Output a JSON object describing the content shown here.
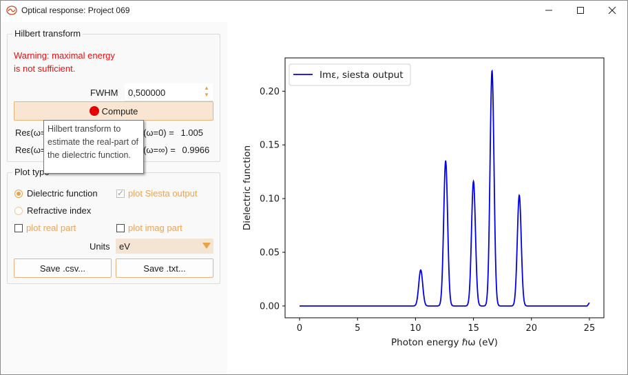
{
  "window": {
    "title": "Optical response: Project 069",
    "buttons": {
      "minimize": "—",
      "maximize": "☐",
      "close": "✕"
    }
  },
  "hilbert": {
    "group_title": "Hilbert transform",
    "warning_line1": "Warning: maximal energy",
    "warning_line2": "is not sufficient.",
    "fwhm_label": "FWHM",
    "fwhm_value": "0,500000",
    "compute_label": "Compute",
    "result1_prefix": "Reε(ω=",
    "result1_suffix": "(ω=0) =",
    "result1_value": "1.005",
    "result2_prefix": "Reε(ω=",
    "result2_suffix": "(ω=∞) =",
    "result2_value": "0.9966",
    "tooltip": "Hilbert transform to estimate the real-part of the dielectric function."
  },
  "plot_type": {
    "group_title": "Plot type",
    "radio_dielectric": "Dielectric function",
    "radio_refractive": "Refractive index",
    "check_siesta": "plot Siesta output",
    "check_real": "plot real part",
    "check_imag": "plot imag part",
    "units_label": "Units",
    "units_value": "eV",
    "save_csv": "Save .csv...",
    "save_txt": "Save .txt..."
  },
  "colors": {
    "accent": "#e8a24a",
    "warning": "#e81010",
    "series": "#0000e6"
  },
  "chart_data": {
    "type": "line",
    "title": "",
    "xlabel": "Photon energy ℏω (eV)",
    "ylabel": "Dielectric function",
    "xlim": [
      -1.25,
      26.25
    ],
    "ylim": [
      -0.011,
      0.231
    ],
    "x_ticks": [
      "0",
      "5",
      "10",
      "15",
      "20",
      "25"
    ],
    "y_ticks": [
      "0.00",
      "0.05",
      "0.10",
      "0.15",
      "0.20"
    ],
    "legend_position": "top-left",
    "series": [
      {
        "name": "Imε, siesta output",
        "color": "#0000e6",
        "peaks": [
          {
            "center": 10.45,
            "height": 0.0335
          },
          {
            "center": 12.6,
            "height": 0.135
          },
          {
            "center": 15.0,
            "height": 0.116
          },
          {
            "center": 16.6,
            "height": 0.219
          },
          {
            "center": 18.95,
            "height": 0.103
          }
        ],
        "x_range": [
          0,
          25
        ],
        "tail_end_value": 0.003
      }
    ]
  }
}
